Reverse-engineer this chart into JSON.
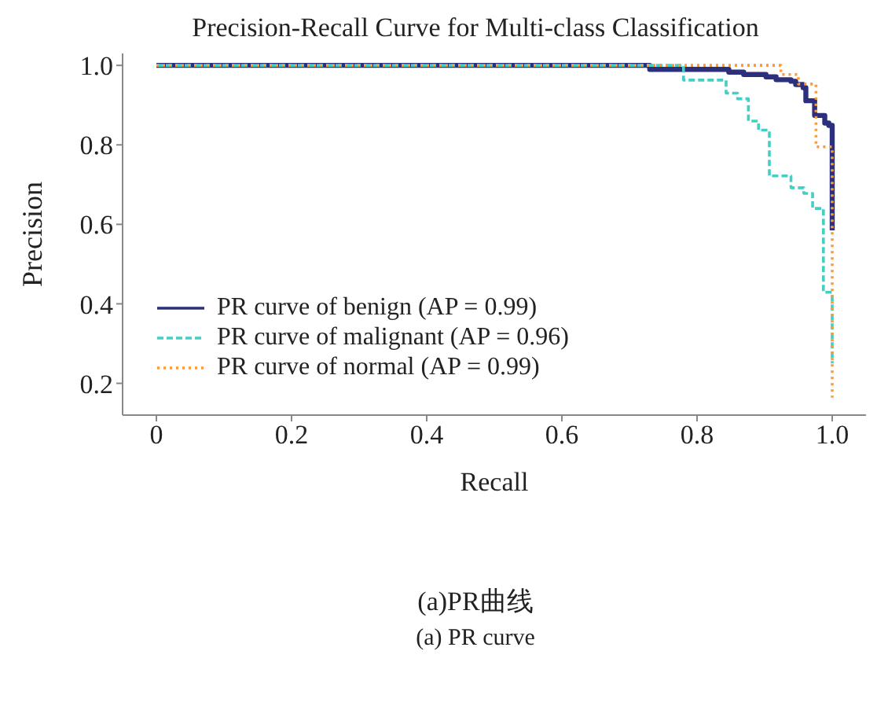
{
  "chart_data": {
    "type": "step",
    "title": "Precision-Recall Curve for Multi-class Classification",
    "xlabel": "Recall",
    "ylabel": "Precision",
    "xlim": [
      -0.05,
      1.05
    ],
    "ylim": [
      0.12,
      1.03
    ],
    "xticks": [
      0,
      0.2,
      0.4,
      0.6,
      0.8,
      {
        "value": 1,
        "label": "1.0"
      }
    ],
    "yticks": [
      0.2,
      0.4,
      0.6,
      0.8,
      {
        "value": 1,
        "label": "1.0"
      }
    ],
    "grid": false,
    "legend": "bottom left",
    "series": [
      {
        "name": "PR curve of benign (AP = 0.99)",
        "color": "#2c2f7c",
        "line_style": "solid",
        "x": [
          0,
          0.73,
          0.847,
          0.869,
          0.902,
          0.917,
          0.939,
          0.946,
          0.957,
          0.961,
          0.974,
          0.989,
          0.995,
          1.0
        ],
        "values": [
          1.0,
          0.99,
          0.983,
          0.977,
          0.971,
          0.964,
          0.96,
          0.952,
          0.944,
          0.911,
          0.874,
          0.855,
          0.849,
          0.585
        ]
      },
      {
        "name": "PR curve of malignant (AP = 0.96)",
        "color": "#45cfc4",
        "line_style": "dashed",
        "x": [
          0,
          0.78,
          0.843,
          0.86,
          0.876,
          0.891,
          0.907,
          0.939,
          0.958,
          0.971,
          0.987,
          1.0
        ],
        "values": [
          1.0,
          0.963,
          0.93,
          0.916,
          0.86,
          0.837,
          0.722,
          0.692,
          0.678,
          0.64,
          0.429,
          0.25
        ]
      },
      {
        "name": "PR curve of normal (AP = 0.99)",
        "color": "#ff9a2e",
        "line_style": "dotted",
        "x": [
          0,
          0.924,
          0.95,
          0.976,
          1.0
        ],
        "values": [
          1.0,
          0.977,
          0.953,
          0.795,
          0.164
        ]
      }
    ],
    "annotations": [
      "(a)PR曲线",
      "(a) PR curve"
    ]
  }
}
